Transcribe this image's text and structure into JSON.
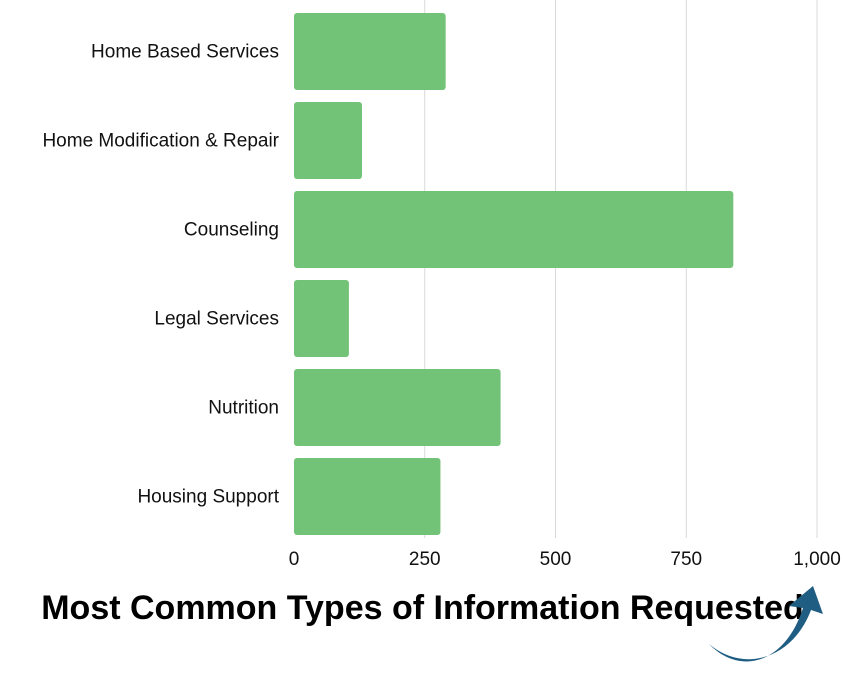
{
  "chart_data": {
    "type": "bar",
    "orientation": "horizontal",
    "title": "Most Common Types of Information Requested",
    "categories": [
      "Home Based Services",
      "Home Modification & Repair",
      "Counseling",
      "Legal Services",
      "Nutrition",
      "Housing Support"
    ],
    "values": [
      290,
      130,
      840,
      105,
      395,
      280
    ],
    "xlim": [
      0,
      1000
    ],
    "xticks": [
      0,
      250,
      500,
      750,
      1000
    ],
    "xtick_labels": [
      "0",
      "250",
      "500",
      "750",
      "1,000"
    ],
    "grid": true,
    "legend": "none",
    "bar_color": "#72c377"
  },
  "decorations": {
    "arrow_icon": "curved-arrow-up-right-icon",
    "arrow_color": "#1f5e82"
  }
}
